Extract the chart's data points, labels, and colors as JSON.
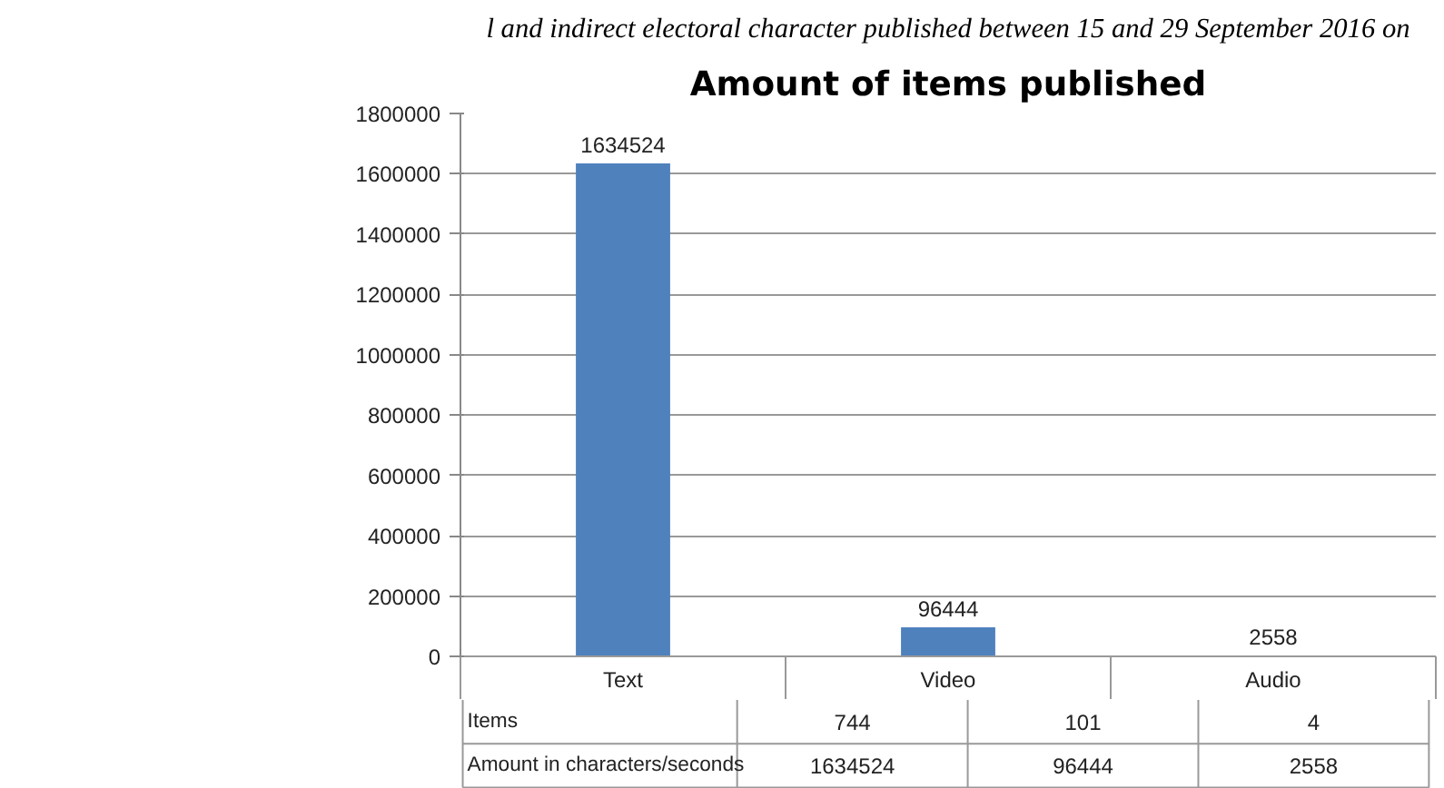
{
  "chart_data": [
    {
      "type": "bar",
      "title": "Amount of items published",
      "subtitle": "l and indirect electoral character published between 15 and 29 September 2016 on",
      "categories": [
        "Text",
        "Video",
        "Audio"
      ],
      "series": [
        {
          "color": "#4f81bd",
          "values": [
            1634524,
            96444,
            2558
          ]
        }
      ],
      "ylim": [
        0,
        1800000
      ],
      "yticks": [
        0,
        200000,
        400000,
        600000,
        800000,
        1000000,
        1200000,
        1400000,
        1600000,
        1800000
      ],
      "grid": "y",
      "data_labels": true
    },
    {
      "type": "other",
      "annotations": [
        "Items",
        "744",
        "101",
        "4",
        "Amount in characters/seconds",
        "1634524",
        "96444",
        "2558"
      ]
    }
  ]
}
